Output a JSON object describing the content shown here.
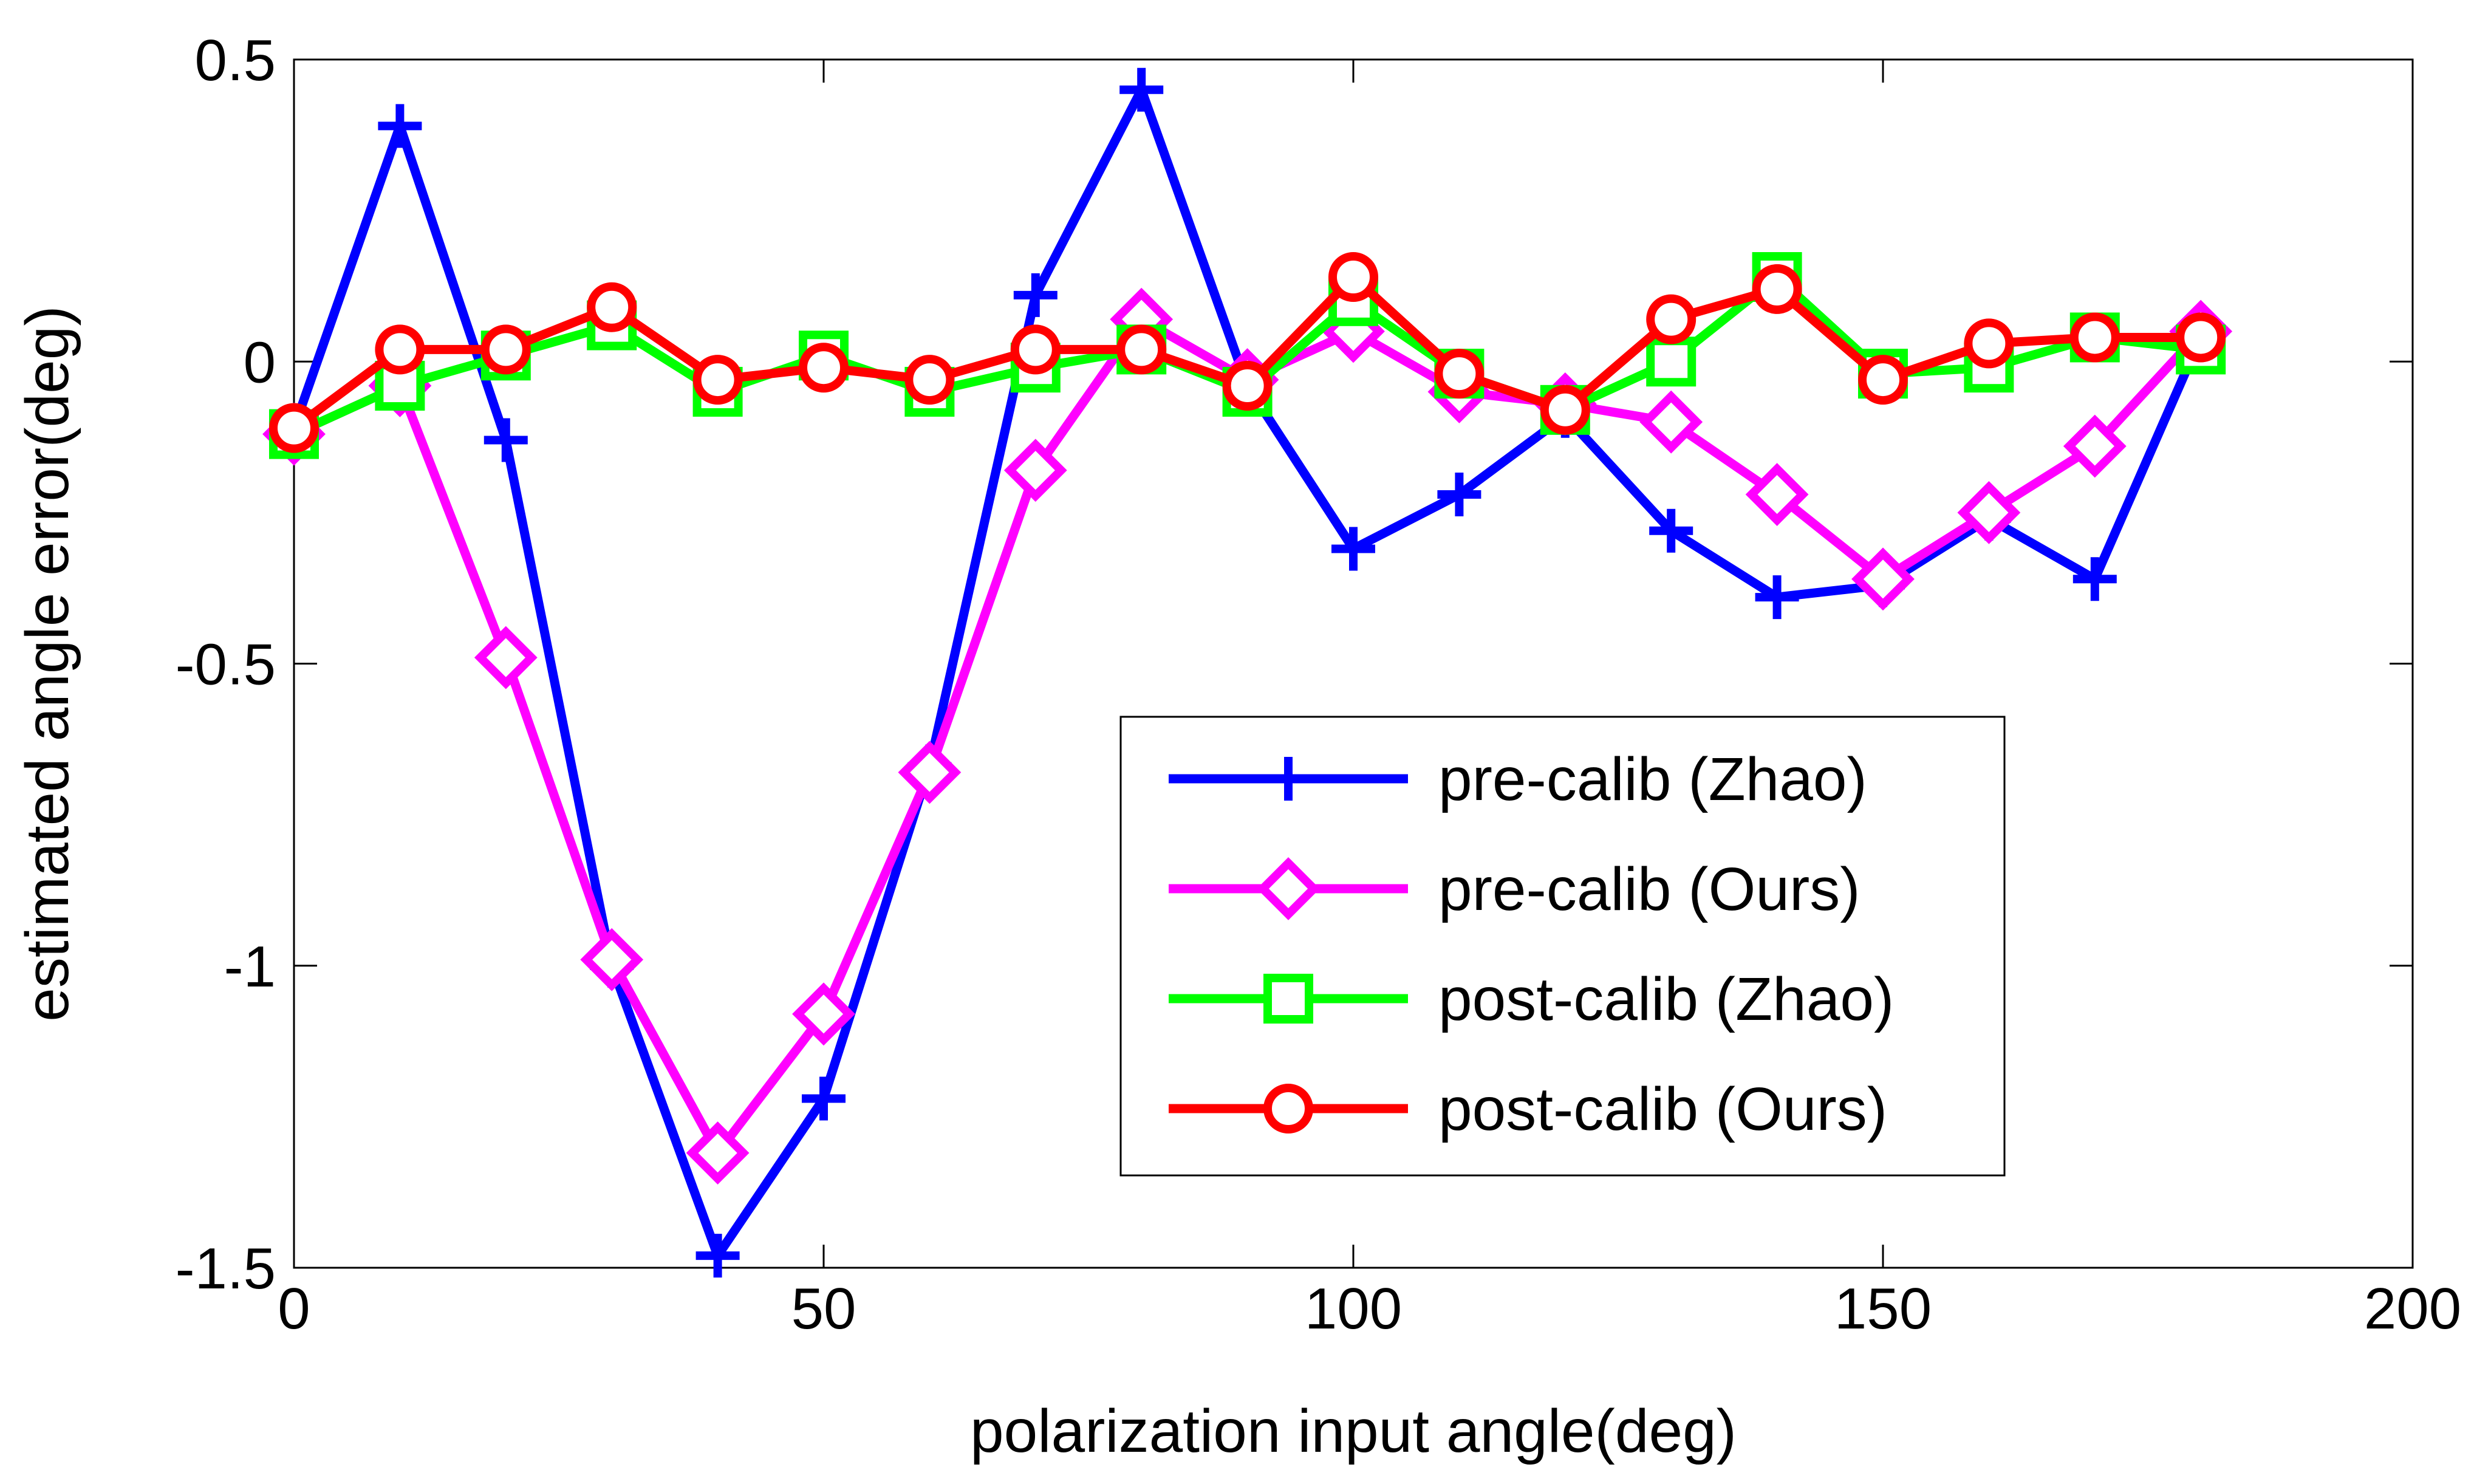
{
  "chart_data": {
    "type": "line",
    "title": "",
    "xlabel": "polarization input angle(deg)",
    "ylabel": "estimated angle error(deg)",
    "xlim": [
      0,
      200
    ],
    "ylim": [
      -1.5,
      0.5
    ],
    "xticks": [
      0,
      50,
      100,
      150,
      200
    ],
    "xtick_labels": [
      "0",
      "50",
      "100",
      "150",
      "200"
    ],
    "yticks": [
      0.5,
      0,
      -0.5,
      -1,
      -1.5
    ],
    "ytick_labels": [
      "0.5",
      "0",
      "-0.5",
      "-1",
      "-1.5"
    ],
    "grid": false,
    "legend_position": "center-right",
    "x": [
      0,
      10,
      20,
      30,
      40,
      50,
      60,
      70,
      80,
      90,
      100,
      110,
      120,
      130,
      140,
      150,
      160,
      170,
      180
    ],
    "series": [
      {
        "name": "pre-calib (Zhao)",
        "color": "#0000ff",
        "marker": "plus",
        "values": [
          -0.11,
          0.39,
          -0.13,
          -1.0,
          -1.48,
          -1.22,
          -0.67,
          0.11,
          0.45,
          -0.04,
          -0.31,
          -0.22,
          -0.09,
          -0.28,
          -0.39,
          -0.37,
          -0.26,
          -0.36,
          0.04
        ]
      },
      {
        "name": "pre-calib (Ours)",
        "color": "#ff00ff",
        "marker": "diamond",
        "values": [
          -0.12,
          -0.04,
          -0.49,
          -0.99,
          -1.31,
          -1.08,
          -0.68,
          -0.18,
          0.07,
          -0.03,
          0.05,
          -0.05,
          -0.07,
          -0.1,
          -0.22,
          -0.36,
          -0.25,
          -0.14,
          0.05
        ]
      },
      {
        "name": "post-calib (Zhao)",
        "color": "#00ff00",
        "marker": "square",
        "values": [
          -0.12,
          -0.04,
          0.01,
          0.06,
          -0.05,
          0.01,
          -0.05,
          -0.01,
          0.02,
          -0.05,
          0.1,
          -0.02,
          -0.08,
          0.0,
          0.14,
          -0.02,
          -0.01,
          0.04,
          0.02
        ]
      },
      {
        "name": "post-calib (Ours)",
        "color": "#ff0000",
        "marker": "circle",
        "values": [
          -0.11,
          0.02,
          0.02,
          0.09,
          -0.03,
          -0.01,
          -0.03,
          0.02,
          0.02,
          -0.04,
          0.14,
          -0.02,
          -0.08,
          0.07,
          0.12,
          -0.03,
          0.03,
          0.04,
          0.04
        ]
      }
    ]
  }
}
